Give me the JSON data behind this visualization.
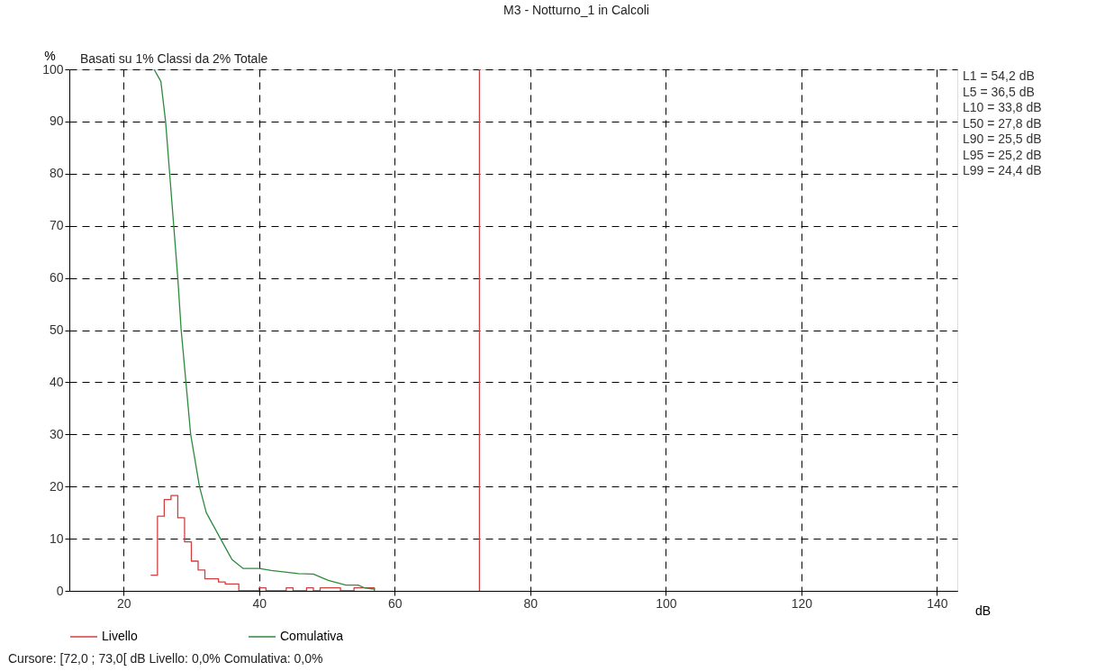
{
  "chart_data": {
    "type": "line",
    "title": "M3 - Notturno_1 in Calcoli",
    "subtitle": "Basati su 1%  Classi da 2%  Totale",
    "xlabel": "dB",
    "ylabel": "%",
    "xlim": [
      12,
      143
    ],
    "xticks": [
      20,
      40,
      60,
      80,
      100,
      120,
      140
    ],
    "ylim": [
      0,
      100
    ],
    "yticks": [
      0,
      10,
      20,
      30,
      40,
      50,
      60,
      70,
      80,
      90,
      100
    ],
    "grid": true,
    "legend": "bottom",
    "series": [
      {
        "name": "Livello",
        "type": "step",
        "color": "#d04040",
        "x": [
          24,
          25,
          26,
          27,
          28,
          29,
          30,
          31,
          32,
          33,
          34,
          35,
          36,
          37,
          38,
          39,
          40,
          41,
          42,
          43,
          44,
          45,
          46,
          47,
          48,
          49,
          50,
          51,
          52,
          53,
          54,
          55,
          56,
          57
        ],
        "values": [
          3,
          14.3,
          17.5,
          18.3,
          14,
          9.4,
          5.7,
          4,
          2.3,
          2.3,
          1.7,
          1.3,
          1.3,
          0,
          0,
          0,
          0.6,
          0,
          0,
          0,
          0.6,
          0,
          0,
          0.6,
          0,
          0.6,
          0.6,
          0.6,
          0,
          0,
          0.6,
          0.6,
          0.6,
          0
        ]
      },
      {
        "name": "Comulativa",
        "color": "#2e8b3e",
        "x": [
          24.5,
          25.5,
          26.2,
          26.8,
          27.4,
          28.0,
          28.5,
          29.2,
          29.9,
          31.2,
          32.2,
          34.3,
          36,
          37.6,
          40,
          41.8,
          45.8,
          48,
          50.2,
          52.8,
          54.6,
          55.5,
          57.1
        ],
        "values": [
          100,
          97.7,
          90,
          80,
          70,
          60,
          50,
          40,
          30,
          20,
          15,
          10,
          6,
          4.3,
          4.3,
          3.9,
          3.3,
          3.2,
          2.0,
          1.1,
          1.1,
          0.6,
          0.3
        ]
      }
    ],
    "ref_lines": [
      {
        "axis": "x",
        "value": 72.5,
        "color": "#d04040"
      }
    ],
    "annotations": [
      "L1    =  54,2 dB",
      "L5    =  36,5 dB",
      "L10  =  33,8 dB",
      "L50  =  27,8 dB",
      "L90  =  25,5 dB",
      "L95  =  25,2 dB",
      "L99  =  24,4 dB",
      "Cursore: [72,0 ; 73,0[ dB   Livello: 0,0%   Comulativa: 0,0%"
    ]
  }
}
